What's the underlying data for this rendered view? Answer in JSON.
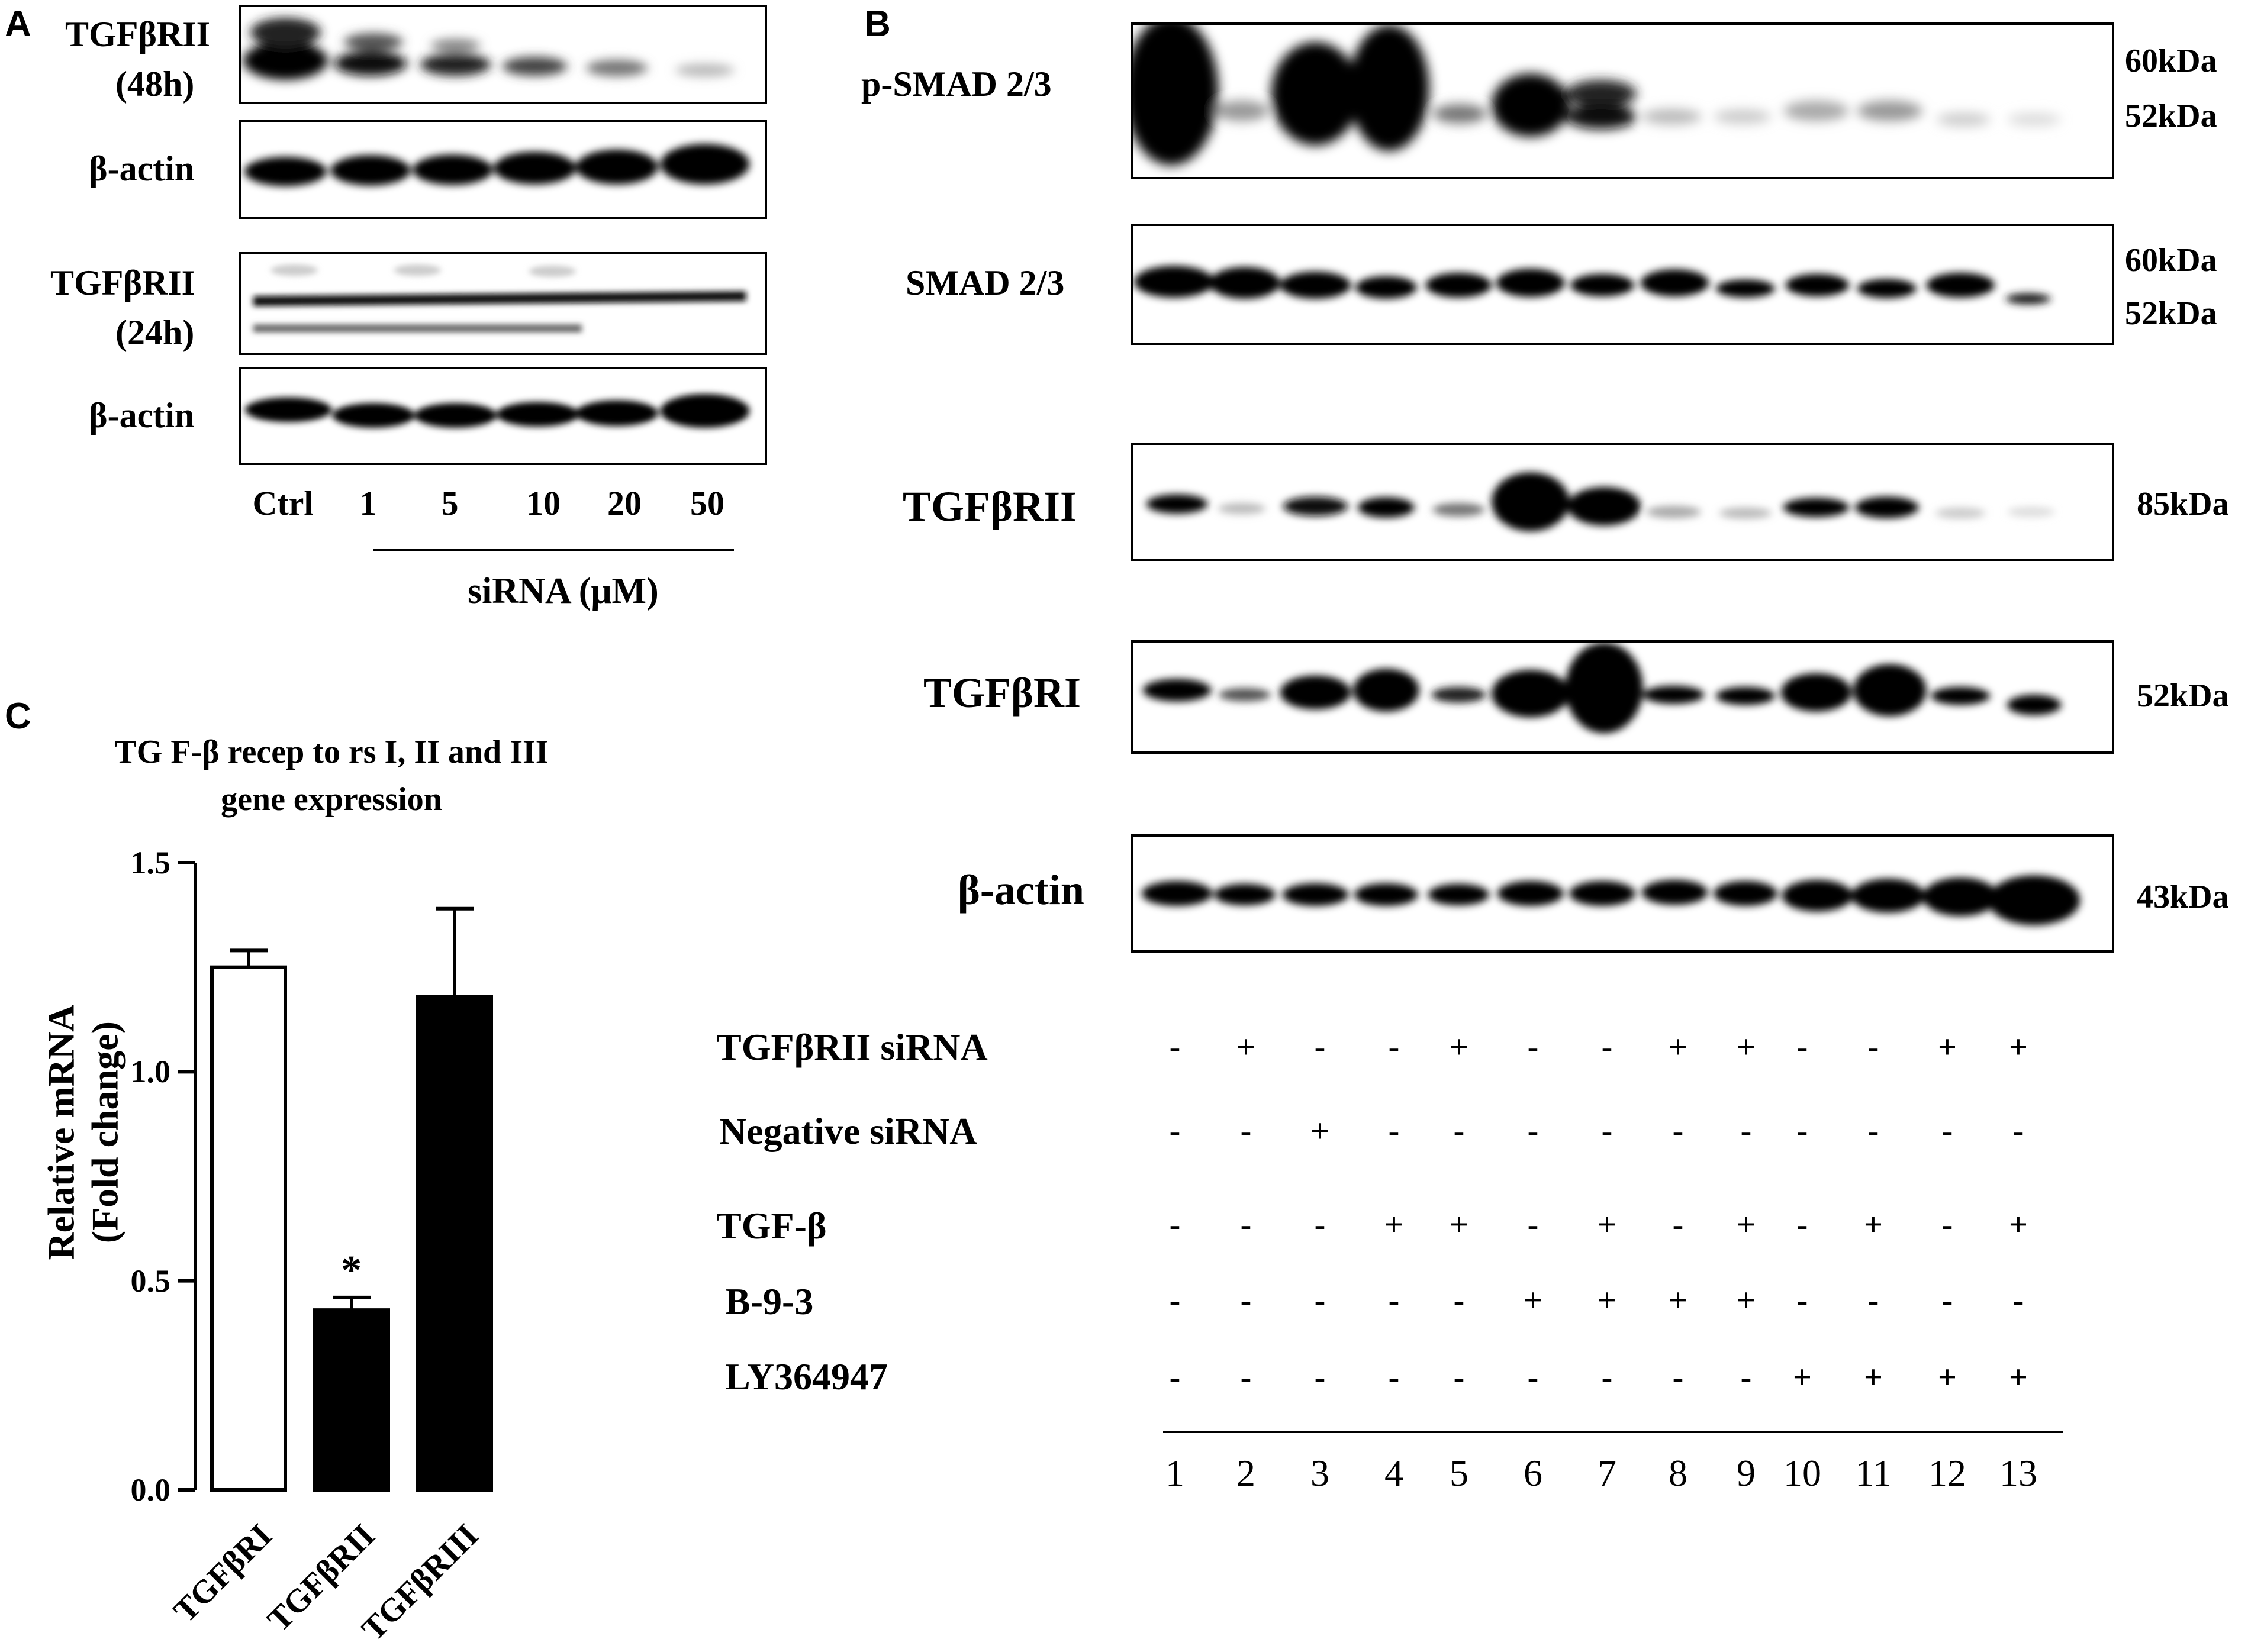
{
  "panel_a": {
    "letter": "A",
    "blots": [
      {
        "label_line1": "TGFβRII",
        "label_line2": "(48h)"
      },
      {
        "label_line1": "β-actin",
        "label_line2": ""
      },
      {
        "label_line1": "TGFβRII",
        "label_line2": "(24h)"
      },
      {
        "label_line1": "β-actin",
        "label_line2": ""
      }
    ],
    "concentrations": [
      "Ctrl",
      "1",
      "5",
      "10",
      "20",
      "50"
    ],
    "axis_label": "siRNA (μM)"
  },
  "panel_b": {
    "letter": "B",
    "blots": [
      {
        "label": "p-SMAD  2/3",
        "markers": [
          "60kDa",
          "52kDa"
        ]
      },
      {
        "label": "SMAD  2/3",
        "markers": [
          "60kDa",
          "52kDa"
        ]
      },
      {
        "label": "TGFβRII",
        "markers": [
          "85kDa"
        ]
      },
      {
        "label": "TGFβRI",
        "markers": [
          "52kDa"
        ]
      },
      {
        "label": "β-actin",
        "markers": [
          "43kDa"
        ]
      }
    ],
    "conditions": [
      {
        "name": "TGFβRII siRNA",
        "marks": [
          "-",
          "+",
          "-",
          "-",
          "+",
          "-",
          "-",
          "+",
          "+",
          "-",
          "-",
          "+",
          "+"
        ]
      },
      {
        "name": "Negative siRNA",
        "marks": [
          "-",
          "-",
          "+",
          "-",
          "-",
          "-",
          "-",
          "-",
          "-",
          "-",
          "-",
          "-",
          "-"
        ]
      },
      {
        "name": "TGF-β",
        "marks": [
          "-",
          "-",
          "-",
          "+",
          "+",
          "-",
          "+",
          "-",
          "+",
          "-",
          "+",
          "-",
          "+"
        ]
      },
      {
        "name": "B-9-3",
        "marks": [
          "-",
          "-",
          "-",
          "-",
          "-",
          "+",
          "+",
          "+",
          "+",
          "-",
          "-",
          "-",
          "-"
        ]
      },
      {
        "name": "LY364947",
        "marks": [
          "-",
          "-",
          "-",
          "-",
          "-",
          "-",
          "-",
          "-",
          "-",
          "+",
          "+",
          "+",
          "+"
        ]
      }
    ],
    "lanes": [
      "1",
      "2",
      "3",
      "4",
      "5",
      "6",
      "7",
      "8",
      "9",
      "10",
      "11",
      "12",
      "13"
    ]
  },
  "panel_c": {
    "letter": "C",
    "chart_data": {
      "type": "bar",
      "title": "TG F-β  recep to rs I, II and III",
      "subtitle": "gene expression",
      "ylabel_line1": "Relative mRNA",
      "ylabel_line2": "(Fold change)",
      "categories": [
        "TGFβRI",
        "TGFβRII",
        "TGFβRIII"
      ],
      "values": [
        1.25,
        0.43,
        1.18
      ],
      "error": [
        0.04,
        0.03,
        0.21
      ],
      "bar_colors": [
        "#ffffff",
        "#000000",
        "#000000"
      ],
      "annotations": [
        "",
        "*",
        ""
      ],
      "ylim": [
        0.0,
        1.5
      ],
      "yticks": [
        "0.0",
        "0.5",
        "1.0",
        "1.5"
      ],
      "grid": false
    }
  }
}
